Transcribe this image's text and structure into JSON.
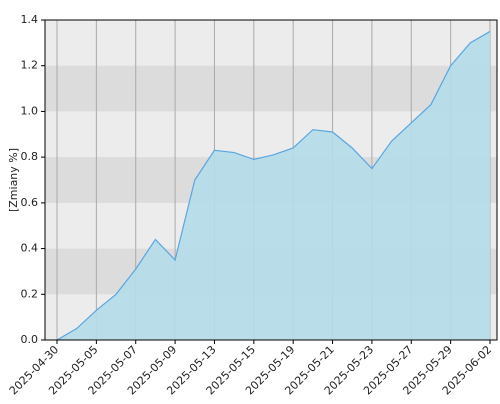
{
  "chart_data": {
    "type": "area",
    "y_label": "[Zmiany %]",
    "categories": [
      "2025-04-30",
      null,
      "2025-05-05",
      null,
      "2025-05-07",
      null,
      "2025-05-09",
      null,
      "2025-05-13",
      null,
      "2025-05-15",
      null,
      "2025-05-19",
      null,
      "2025-05-21",
      null,
      "2025-05-23",
      null,
      "2025-05-27",
      null,
      "2025-05-29",
      null,
      "2025-06-02"
    ],
    "values": [
      0.0,
      0.05,
      0.13,
      0.2,
      0.31,
      0.44,
      0.35,
      0.7,
      0.83,
      0.82,
      0.79,
      0.81,
      0.84,
      0.92,
      0.91,
      0.84,
      0.75,
      0.87,
      0.95,
      1.03,
      1.2,
      1.3,
      1.35
    ],
    "color": "#5aa6e0",
    "fill": "#b5dbea",
    "ylim": [
      0,
      1.4
    ],
    "yticks": [
      {
        "value": 0,
        "label": "0.0"
      },
      0.2,
      0.4,
      0.6,
      0.8,
      {
        "value": 1,
        "label": "1.0"
      },
      1.2,
      1.4
    ],
    "grid": true
  }
}
